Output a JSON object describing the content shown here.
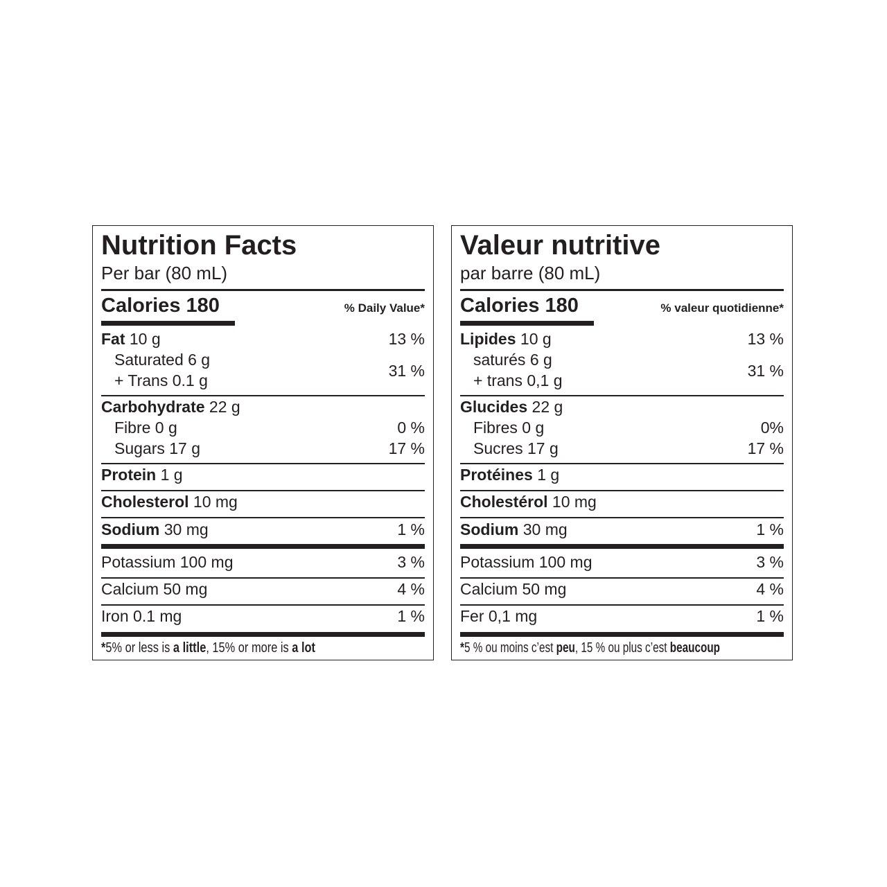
{
  "panels": [
    {
      "id": "english",
      "title": "Nutrition Facts",
      "serving": "Per bar (80 mL)",
      "calories": "Calories 180",
      "dv_header": "% Daily Value*",
      "sat_trans_dv": "31 %",
      "rows": [
        {
          "bold": "Fat",
          "rest": " 10 g",
          "dv": "13 %",
          "indent": false
        },
        {
          "bold": "",
          "rest": "Saturated 6 g",
          "dv": "",
          "indent": true
        },
        {
          "bold": "",
          "rest": "+ Trans 0.1 g",
          "dv": "",
          "indent": true
        },
        {
          "bold": "Carbohydrate",
          "rest": " 22 g",
          "dv": "",
          "indent": false
        },
        {
          "bold": "",
          "rest": "Fibre 0 g",
          "dv": "0 %",
          "indent": true
        },
        {
          "bold": "",
          "rest": "Sugars 17 g",
          "dv": "17 %",
          "indent": true
        },
        {
          "bold": "Protein",
          "rest": " 1 g",
          "dv": "",
          "indent": false
        },
        {
          "bold": "Cholesterol",
          "rest": " 10 mg",
          "dv": "",
          "indent": false
        },
        {
          "bold": "Sodium",
          "rest": " 30 mg",
          "dv": "1 %",
          "indent": false
        },
        {
          "bold": "",
          "rest": "Potassium 100 mg",
          "dv": "3 %",
          "indent": false
        },
        {
          "bold": "",
          "rest": "Calcium 50 mg",
          "dv": "4 %",
          "indent": false
        },
        {
          "bold": "",
          "rest": "Iron 0.1 mg",
          "dv": "1 %",
          "indent": false
        }
      ],
      "footnote": [
        "*",
        "5% or less is ",
        "a little",
        ", 15% or more is ",
        "a lot"
      ]
    },
    {
      "id": "french",
      "title": "Valeur nutritive",
      "serving": "par barre (80 mL)",
      "calories": "Calories 180",
      "dv_header": "% valeur quotidienne*",
      "sat_trans_dv": "31 %",
      "rows": [
        {
          "bold": "Lipides",
          "rest": " 10 g",
          "dv": "13 %",
          "indent": false
        },
        {
          "bold": "",
          "rest": "saturés 6 g",
          "dv": "",
          "indent": true
        },
        {
          "bold": "",
          "rest": "+ trans 0,1 g",
          "dv": "",
          "indent": true
        },
        {
          "bold": "Glucides",
          "rest": " 22 g",
          "dv": "",
          "indent": false
        },
        {
          "bold": "",
          "rest": "Fibres 0 g",
          "dv": "0%",
          "indent": true
        },
        {
          "bold": "",
          "rest": "Sucres 17 g",
          "dv": "17 %",
          "indent": true
        },
        {
          "bold": "Protéines",
          "rest": " 1 g",
          "dv": "",
          "indent": false
        },
        {
          "bold": "Cholestérol",
          "rest": " 10 mg",
          "dv": "",
          "indent": false
        },
        {
          "bold": "Sodium",
          "rest": " 30 mg",
          "dv": "1 %",
          "indent": false
        },
        {
          "bold": "",
          "rest": "Potassium 100 mg",
          "dv": "3 %",
          "indent": false
        },
        {
          "bold": "",
          "rest": "Calcium 50 mg",
          "dv": "4 %",
          "indent": false
        },
        {
          "bold": "",
          "rest": "Fer 0,1 mg",
          "dv": "1 %",
          "indent": false
        }
      ],
      "footnote": [
        "*",
        "5 % ou moins c’est ",
        "peu",
        ", 15 % ou plus c’est ",
        "beaucoup"
      ]
    }
  ]
}
